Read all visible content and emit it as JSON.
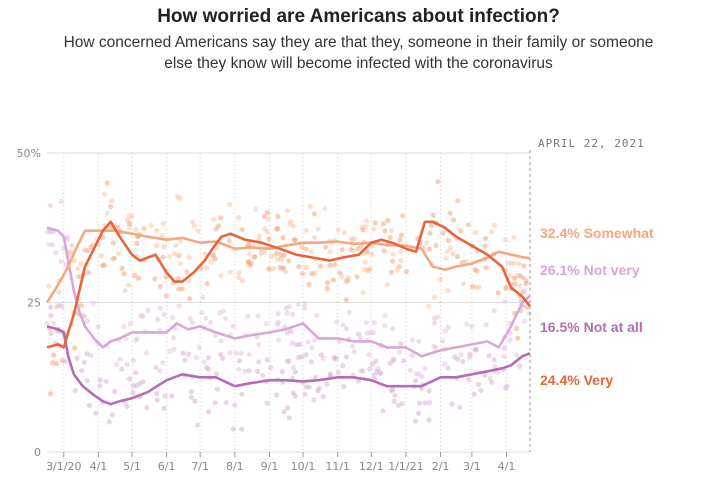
{
  "title": "How worried are Americans about infection?",
  "subtitle": "How concerned Americans say they are that they, someone in their family or someone else they know will become infected with the coronavirus",
  "colors": {
    "very": "#e8643c",
    "somewhat": "#f5a780",
    "not_very": "#d9a6d8",
    "not_at_all": "#b46cb6",
    "grid": "#dddddd",
    "tick": "#888888"
  },
  "chart_data": {
    "type": "line",
    "date_label": "APRIL 22, 2021",
    "xlabel": "",
    "ylabel": "",
    "ylim": [
      0,
      50
    ],
    "y_ticks": [
      {
        "value": 0,
        "label": "0"
      },
      {
        "value": 25,
        "label": "25"
      },
      {
        "value": 50,
        "label": "50%"
      }
    ],
    "x_range": [
      "2020-02-15",
      "2021-04-22"
    ],
    "x_ticks": [
      {
        "date": "2020-03-01",
        "label": "3/1/20"
      },
      {
        "date": "2020-04-01",
        "label": "4/1"
      },
      {
        "date": "2020-05-01",
        "label": "5/1"
      },
      {
        "date": "2020-06-01",
        "label": "6/1"
      },
      {
        "date": "2020-07-01",
        "label": "7/1"
      },
      {
        "date": "2020-08-01",
        "label": "8/1"
      },
      {
        "date": "2020-09-01",
        "label": "9/1"
      },
      {
        "date": "2020-10-01",
        "label": "10/1"
      },
      {
        "date": "2020-11-01",
        "label": "11/1"
      },
      {
        "date": "2020-12-01",
        "label": "12/1"
      },
      {
        "date": "2021-01-01",
        "label": "1/1/21"
      },
      {
        "date": "2021-02-01",
        "label": "2/1"
      },
      {
        "date": "2021-03-01",
        "label": "3/1"
      },
      {
        "date": "2021-04-01",
        "label": "4/1"
      }
    ],
    "series": [
      {
        "key": "somewhat",
        "name": "Somewhat",
        "end_label": "32.4% Somewhat",
        "points": [
          [
            "2020-02-15",
            25
          ],
          [
            "2020-02-25",
            28
          ],
          [
            "2020-03-05",
            31
          ],
          [
            "2020-03-12",
            34
          ],
          [
            "2020-03-20",
            37
          ],
          [
            "2020-04-01",
            37
          ],
          [
            "2020-04-15",
            37
          ],
          [
            "2020-05-01",
            36.5
          ],
          [
            "2020-05-15",
            36
          ],
          [
            "2020-06-01",
            35.5
          ],
          [
            "2020-06-15",
            35.8
          ],
          [
            "2020-07-01",
            35
          ],
          [
            "2020-07-15",
            35.2
          ],
          [
            "2020-08-01",
            34
          ],
          [
            "2020-08-15",
            34.2
          ],
          [
            "2020-09-01",
            34
          ],
          [
            "2020-09-15",
            34.5
          ],
          [
            "2020-10-01",
            35
          ],
          [
            "2020-10-15",
            35
          ],
          [
            "2020-11-01",
            35.2
          ],
          [
            "2020-11-15",
            34.8
          ],
          [
            "2020-12-01",
            35
          ],
          [
            "2020-12-15",
            34.6
          ],
          [
            "2021-01-01",
            34.5
          ],
          [
            "2021-01-15",
            34
          ],
          [
            "2021-01-25",
            31
          ],
          [
            "2021-02-05",
            30.5
          ],
          [
            "2021-02-15",
            31
          ],
          [
            "2021-03-01",
            31.5
          ],
          [
            "2021-03-15",
            32.5
          ],
          [
            "2021-03-25",
            33.5
          ],
          [
            "2021-04-05",
            33
          ],
          [
            "2021-04-15",
            32.6
          ],
          [
            "2021-04-22",
            32.4
          ]
        ]
      },
      {
        "key": "very",
        "name": "Very",
        "end_label": "24.4% Very",
        "points": [
          [
            "2020-02-15",
            17.5
          ],
          [
            "2020-02-25",
            18
          ],
          [
            "2020-03-01",
            17.5
          ],
          [
            "2020-03-05",
            20
          ],
          [
            "2020-03-10",
            23
          ],
          [
            "2020-03-15",
            27
          ],
          [
            "2020-03-20",
            31
          ],
          [
            "2020-03-28",
            34
          ],
          [
            "2020-04-05",
            37
          ],
          [
            "2020-04-12",
            38.5
          ],
          [
            "2020-04-20",
            36
          ],
          [
            "2020-05-01",
            33
          ],
          [
            "2020-05-08",
            32
          ],
          [
            "2020-05-15",
            32.5
          ],
          [
            "2020-05-22",
            33
          ],
          [
            "2020-06-01",
            30
          ],
          [
            "2020-06-08",
            28.5
          ],
          [
            "2020-06-15",
            28.5
          ],
          [
            "2020-06-25",
            30
          ],
          [
            "2020-07-05",
            32
          ],
          [
            "2020-07-12",
            34
          ],
          [
            "2020-07-20",
            36
          ],
          [
            "2020-07-28",
            36.5
          ],
          [
            "2020-08-10",
            35.5
          ],
          [
            "2020-08-25",
            35
          ],
          [
            "2020-09-10",
            34
          ],
          [
            "2020-09-25",
            33
          ],
          [
            "2020-10-10",
            32.5
          ],
          [
            "2020-10-25",
            32
          ],
          [
            "2020-11-05",
            32.5
          ],
          [
            "2020-11-20",
            33
          ],
          [
            "2020-12-01",
            35
          ],
          [
            "2020-12-10",
            35.5
          ],
          [
            "2020-12-20",
            35
          ],
          [
            "2021-01-01",
            34
          ],
          [
            "2021-01-10",
            33.5
          ],
          [
            "2021-01-18",
            38.5
          ],
          [
            "2021-01-25",
            38.5
          ],
          [
            "2021-02-05",
            37.5
          ],
          [
            "2021-02-15",
            36
          ],
          [
            "2021-03-01",
            34.5
          ],
          [
            "2021-03-15",
            33
          ],
          [
            "2021-03-28",
            31
          ],
          [
            "2021-04-05",
            27.5
          ],
          [
            "2021-04-15",
            26
          ],
          [
            "2021-04-22",
            24.4
          ]
        ]
      },
      {
        "key": "not_very",
        "name": "Not very",
        "end_label": "26.1% Not very",
        "points": [
          [
            "2020-02-15",
            37.5
          ],
          [
            "2020-02-25",
            37
          ],
          [
            "2020-03-01",
            36
          ],
          [
            "2020-03-05",
            32
          ],
          [
            "2020-03-10",
            27
          ],
          [
            "2020-03-15",
            23.5
          ],
          [
            "2020-03-20",
            21
          ],
          [
            "2020-03-28",
            19
          ],
          [
            "2020-04-05",
            17.5
          ],
          [
            "2020-04-12",
            18.5
          ],
          [
            "2020-04-20",
            19
          ],
          [
            "2020-05-01",
            20
          ],
          [
            "2020-05-15",
            20
          ],
          [
            "2020-06-01",
            20
          ],
          [
            "2020-06-10",
            21.5
          ],
          [
            "2020-06-20",
            20.5
          ],
          [
            "2020-07-01",
            21
          ],
          [
            "2020-07-15",
            20
          ],
          [
            "2020-08-01",
            19
          ],
          [
            "2020-08-15",
            19.5
          ],
          [
            "2020-09-01",
            20
          ],
          [
            "2020-09-15",
            20.5
          ],
          [
            "2020-10-01",
            21.5
          ],
          [
            "2020-10-15",
            19
          ],
          [
            "2020-11-01",
            19
          ],
          [
            "2020-11-15",
            18.5
          ],
          [
            "2020-12-01",
            18.5
          ],
          [
            "2020-12-15",
            17.5
          ],
          [
            "2021-01-01",
            17.5
          ],
          [
            "2021-01-15",
            16
          ],
          [
            "2021-02-01",
            17
          ],
          [
            "2021-02-15",
            17.5
          ],
          [
            "2021-03-01",
            18
          ],
          [
            "2021-03-15",
            18.5
          ],
          [
            "2021-03-25",
            17.5
          ],
          [
            "2021-04-05",
            21
          ],
          [
            "2021-04-15",
            25
          ],
          [
            "2021-04-22",
            26.1
          ]
        ]
      },
      {
        "key": "not_at_all",
        "name": "Not at all",
        "end_label": "16.5% Not at all",
        "points": [
          [
            "2020-02-15",
            21
          ],
          [
            "2020-02-25",
            20.5
          ],
          [
            "2020-03-01",
            20
          ],
          [
            "2020-03-05",
            16
          ],
          [
            "2020-03-10",
            13
          ],
          [
            "2020-03-18",
            11
          ],
          [
            "2020-03-28",
            9.5
          ],
          [
            "2020-04-05",
            8.5
          ],
          [
            "2020-04-12",
            8
          ],
          [
            "2020-04-20",
            8.5
          ],
          [
            "2020-05-01",
            9
          ],
          [
            "2020-05-15",
            10
          ],
          [
            "2020-06-01",
            12
          ],
          [
            "2020-06-15",
            13
          ],
          [
            "2020-07-01",
            12.5
          ],
          [
            "2020-07-15",
            12.5
          ],
          [
            "2020-08-01",
            11
          ],
          [
            "2020-08-15",
            11.5
          ],
          [
            "2020-09-01",
            12
          ],
          [
            "2020-09-15",
            12
          ],
          [
            "2020-10-01",
            11.8
          ],
          [
            "2020-10-15",
            12
          ],
          [
            "2020-11-01",
            12.5
          ],
          [
            "2020-11-15",
            12.5
          ],
          [
            "2020-12-01",
            12
          ],
          [
            "2020-12-15",
            11
          ],
          [
            "2021-01-01",
            11
          ],
          [
            "2021-01-15",
            11
          ],
          [
            "2021-02-01",
            12.5
          ],
          [
            "2021-02-15",
            12.5
          ],
          [
            "2021-03-01",
            13
          ],
          [
            "2021-03-15",
            13.5
          ],
          [
            "2021-03-28",
            14
          ],
          [
            "2021-04-05",
            14.5
          ],
          [
            "2021-04-15",
            16
          ],
          [
            "2021-04-22",
            16.5
          ]
        ]
      }
    ]
  }
}
